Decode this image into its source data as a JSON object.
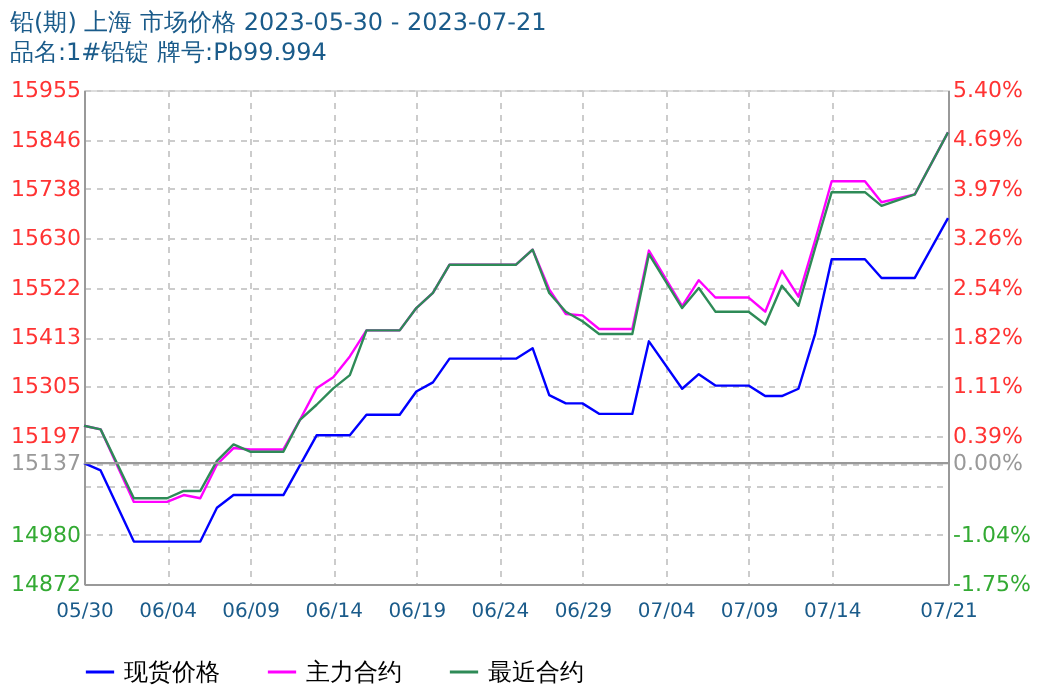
{
  "chart_data": {
    "type": "line",
    "title": "铅(期) 上海 市场价格 2023-05-30 - 2023-07-21",
    "subtitle": "品名:1#铅锭 牌号:Pb99.994",
    "series": [
      {
        "name": "现货价格",
        "color": "#0000ff",
        "x": [
          "2023-05-30",
          "2023-05-31",
          "2023-06-02",
          "2023-06-06",
          "2023-06-07",
          "2023-06-08",
          "2023-06-11",
          "2023-06-13",
          "2023-06-15",
          "2023-06-16",
          "2023-06-18",
          "2023-06-19",
          "2023-06-20",
          "2023-06-21",
          "2023-06-25",
          "2023-06-26",
          "2023-06-27",
          "2023-06-28",
          "2023-06-29",
          "2023-06-30",
          "2023-07-02",
          "2023-07-03",
          "2023-07-05",
          "2023-07-06",
          "2023-07-07",
          "2023-07-09",
          "2023-07-10",
          "2023-07-11",
          "2023-07-12",
          "2023-07-13",
          "2023-07-14",
          "2023-07-16",
          "2023-07-17",
          "2023-07-19",
          "2023-07-21"
        ],
        "values": [
          15137,
          15121,
          14965,
          14965,
          15039,
          15067,
          15067,
          15198,
          15198,
          15243,
          15243,
          15294,
          15314,
          15366,
          15366,
          15389,
          15286,
          15268,
          15268,
          15245,
          15245,
          15404,
          15300,
          15332,
          15307,
          15307,
          15284,
          15284,
          15300,
          15420,
          15584,
          15584,
          15543,
          15543,
          15674
        ]
      },
      {
        "name": "主力合约",
        "color": "#ff00ff",
        "x": [
          "2023-05-30",
          "2023-05-31",
          "2023-06-02",
          "2023-06-04",
          "2023-06-05",
          "2023-06-06",
          "2023-06-07",
          "2023-06-08",
          "2023-06-09",
          "2023-06-11",
          "2023-06-12",
          "2023-06-13",
          "2023-06-14",
          "2023-06-15",
          "2023-06-16",
          "2023-06-18",
          "2023-06-19",
          "2023-06-20",
          "2023-06-21",
          "2023-06-25",
          "2023-06-26",
          "2023-06-27",
          "2023-06-28",
          "2023-06-29",
          "2023-06-30",
          "2023-07-02",
          "2023-07-03",
          "2023-07-05",
          "2023-07-06",
          "2023-07-07",
          "2023-07-09",
          "2023-07-10",
          "2023-07-11",
          "2023-07-12",
          "2023-07-13",
          "2023-07-14",
          "2023-07-16",
          "2023-07-17",
          "2023-07-19",
          "2023-07-21"
        ],
        "values": [
          15219,
          15211,
          15052,
          15052,
          15067,
          15060,
          15134,
          15170,
          15167,
          15167,
          15232,
          15301,
          15325,
          15371,
          15428,
          15428,
          15477,
          15510,
          15572,
          15572,
          15605,
          15518,
          15464,
          15461,
          15431,
          15431,
          15603,
          15481,
          15538,
          15500,
          15500,
          15469,
          15559,
          15502,
          15625,
          15755,
          15755,
          15709,
          15726,
          15862
        ]
      },
      {
        "name": "最近合约",
        "color": "#2e8b57",
        "x": [
          "2023-05-30",
          "2023-05-31",
          "2023-06-02",
          "2023-06-04",
          "2023-06-05",
          "2023-06-06",
          "2023-06-07",
          "2023-06-08",
          "2023-06-09",
          "2023-06-11",
          "2023-06-12",
          "2023-06-13",
          "2023-06-14",
          "2023-06-15",
          "2023-06-16",
          "2023-06-18",
          "2023-06-19",
          "2023-06-20",
          "2023-06-21",
          "2023-06-25",
          "2023-06-26",
          "2023-06-27",
          "2023-06-28",
          "2023-06-29",
          "2023-06-30",
          "2023-07-02",
          "2023-07-03",
          "2023-07-05",
          "2023-07-06",
          "2023-07-07",
          "2023-07-09",
          "2023-07-10",
          "2023-07-11",
          "2023-07-12",
          "2023-07-13",
          "2023-07-14",
          "2023-07-16",
          "2023-07-17",
          "2023-07-19",
          "2023-07-21"
        ],
        "values": [
          15219,
          15211,
          15060,
          15060,
          15076,
          15076,
          15142,
          15178,
          15162,
          15162,
          15232,
          15265,
          15301,
          15330,
          15428,
          15428,
          15477,
          15510,
          15572,
          15572,
          15605,
          15510,
          15469,
          15448,
          15420,
          15420,
          15595,
          15477,
          15521,
          15469,
          15469,
          15441,
          15526,
          15482,
          15608,
          15731,
          15731,
          15701,
          15726,
          15862
        ]
      }
    ],
    "xlim": [
      "2023-05-30",
      "2023-07-21"
    ],
    "xticks": [
      {
        "value": "2023-05-30",
        "label": "05/30"
      },
      {
        "value": "2023-06-04",
        "label": "06/04"
      },
      {
        "value": "2023-06-09",
        "label": "06/09"
      },
      {
        "value": "2023-06-14",
        "label": "06/14"
      },
      {
        "value": "2023-06-19",
        "label": "06/19"
      },
      {
        "value": "2023-06-24",
        "label": "06/24"
      },
      {
        "value": "2023-06-29",
        "label": "06/29"
      },
      {
        "value": "2023-07-04",
        "label": "07/04"
      },
      {
        "value": "2023-07-09",
        "label": "07/09"
      },
      {
        "value": "2023-07-14",
        "label": "07/14"
      },
      {
        "value": "2023-07-21",
        "label": "07/21"
      }
    ],
    "ylim": [
      14872,
      15955
    ],
    "yticks": [
      15955,
      15846,
      15738,
      15630,
      15522,
      15413,
      15305,
      15197,
      15137,
      {
        "value": 15088,
        "label": null
      },
      14980,
      14872
    ],
    "y2lim": [
      -1.75,
      5.4
    ],
    "y2ticks": [
      {
        "value": 5.4,
        "label": "5.40%"
      },
      {
        "value": 4.69,
        "label": "4.69%"
      },
      {
        "value": 3.97,
        "label": "3.97%"
      },
      {
        "value": 3.26,
        "label": "3.26%"
      },
      {
        "value": 2.54,
        "label": "2.54%"
      },
      {
        "value": 1.82,
        "label": "1.82%"
      },
      {
        "value": 1.11,
        "label": "1.11%"
      },
      {
        "value": 0.39,
        "label": "0.39%"
      },
      {
        "value": 0,
        "label": "0.00%"
      },
      {
        "value": -1.04,
        "label": "-1.04%"
      },
      {
        "value": -1.75,
        "label": "-1.75%"
      }
    ],
    "ref_lines": [
      {
        "axis": "y",
        "value": 15137,
        "color": "#999999"
      }
    ],
    "grid": true,
    "legend": "bottom",
    "line_style": "solid"
  }
}
